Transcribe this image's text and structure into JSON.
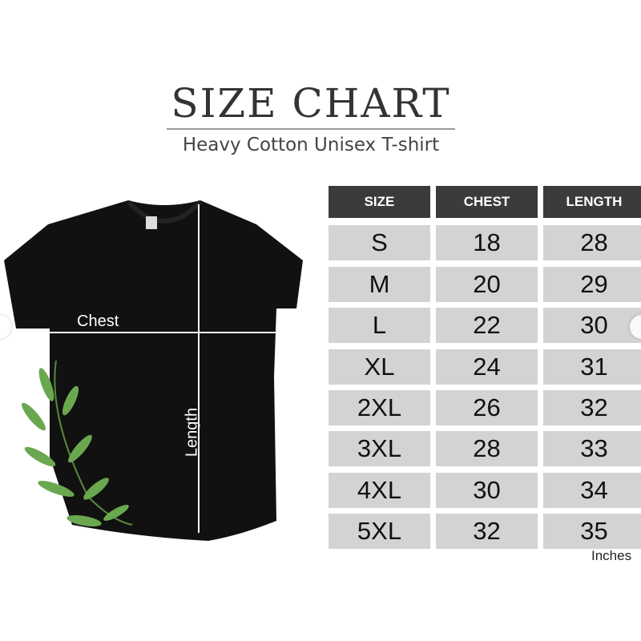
{
  "header": {
    "title": "SIZE CHART",
    "subtitle": "Heavy Cotton Unisex T-shirt"
  },
  "diagram": {
    "chest_label": "Chest",
    "length_label": "Length"
  },
  "table": {
    "columns": [
      "SIZE",
      "CHEST",
      "LENGTH"
    ],
    "rows": [
      [
        "S",
        "18",
        "28"
      ],
      [
        "M",
        "20",
        "29"
      ],
      [
        "L",
        "22",
        "30"
      ],
      [
        "XL",
        "24",
        "31"
      ],
      [
        "2XL",
        "26",
        "32"
      ],
      [
        "3XL",
        "28",
        "33"
      ],
      [
        "4XL",
        "30",
        "34"
      ],
      [
        "5XL",
        "32",
        "35"
      ]
    ],
    "unit": "Inches"
  },
  "colors": {
    "header_bg": "#3b3b3b",
    "cell_bg": "#d3d3d3",
    "shirt": "#111111",
    "leaf": "#6aa84f"
  },
  "carousel": {
    "prev_icon": "chevron-left-icon",
    "next_icon": "chevron-right-icon"
  }
}
